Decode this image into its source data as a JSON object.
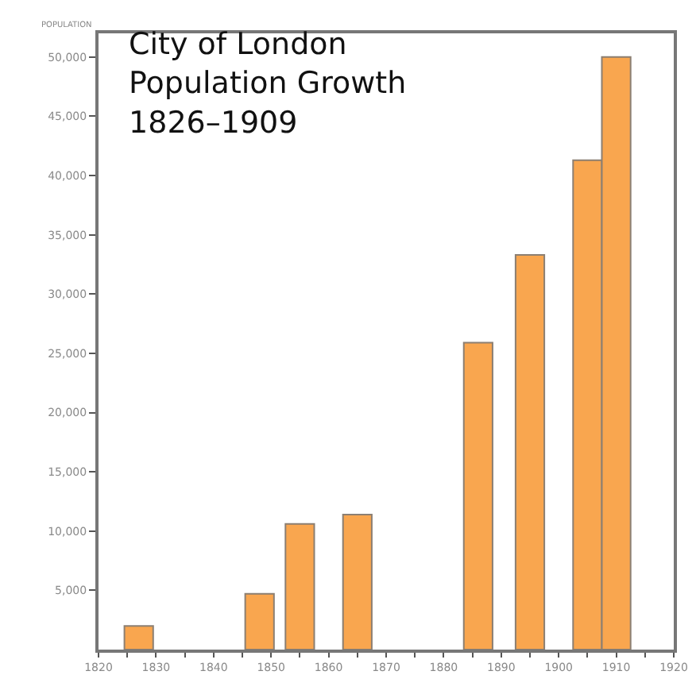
{
  "chart_data": {
    "type": "bar",
    "title": "City of London\nPopulation Growth\n1826–1909",
    "ylabel": "POPULATION",
    "x": [
      1827,
      1848,
      1855,
      1865,
      1886,
      1895,
      1905,
      1910
    ],
    "values": [
      2000,
      4700,
      10600,
      11400,
      25900,
      33300,
      41300,
      50000
    ],
    "color": "#f9a64f",
    "xlim": [
      1820,
      1920
    ],
    "xticks": [
      1820,
      {
        "value": 1825,
        "label": null
      },
      1830,
      {
        "value": 1835,
        "label": null
      },
      1840,
      {
        "value": 1845,
        "label": null
      },
      1850,
      {
        "value": 1855,
        "label": null
      },
      1860,
      {
        "value": 1865,
        "label": null
      },
      1870,
      {
        "value": 1875,
        "label": null
      },
      1880,
      {
        "value": 1885,
        "label": null
      },
      1890,
      {
        "value": 1895,
        "label": null
      },
      1900,
      {
        "value": 1905,
        "label": null
      },
      1910,
      {
        "value": 1915,
        "label": null
      },
      1920
    ],
    "ylim": [
      0,
      52000
    ],
    "yticks": [
      {
        "value": 5000,
        "label": "5,000"
      },
      {
        "value": 10000,
        "label": "10,000"
      },
      {
        "value": 15000,
        "label": "15,000"
      },
      {
        "value": 20000,
        "label": "20,000"
      },
      {
        "value": 25000,
        "label": "25,000"
      },
      {
        "value": 30000,
        "label": "30,000"
      },
      {
        "value": 35000,
        "label": "35,000"
      },
      {
        "value": 40000,
        "label": "40,000"
      },
      {
        "value": 45000,
        "label": "45,000"
      },
      {
        "value": 50000,
        "label": "50,000"
      }
    ],
    "line_style": "solid"
  }
}
